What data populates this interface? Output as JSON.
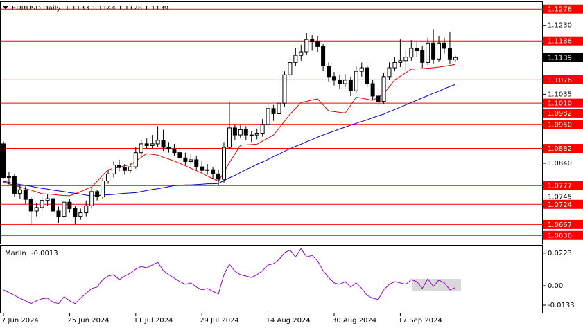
{
  "chart_data": [
    {
      "type": "candlestick",
      "title": "EURUSD,Daily  1.1133 1.1144 1.1128 1.1139",
      "categories": [
        "7 Jun 2024",
        null,
        null,
        null,
        null,
        null,
        null,
        null,
        null,
        null,
        null,
        null,
        "25 Jun 2024",
        null,
        null,
        null,
        null,
        null,
        null,
        null,
        null,
        null,
        null,
        null,
        "11 Jul 2024",
        null,
        null,
        null,
        null,
        null,
        null,
        null,
        null,
        null,
        null,
        null,
        "29 Jul 2024",
        null,
        null,
        null,
        null,
        null,
        null,
        null,
        null,
        null,
        null,
        null,
        "14 Aug 2024",
        null,
        null,
        null,
        null,
        null,
        null,
        null,
        null,
        null,
        null,
        null,
        "30 Aug 2024",
        null,
        null,
        null,
        null,
        null,
        null,
        null,
        null,
        null,
        null,
        null,
        "17 Sep 2024",
        null,
        null,
        null,
        null,
        null,
        null,
        null,
        null,
        null,
        null
      ],
      "open": [
        1.0895,
        1.08,
        1.0802,
        1.0755,
        1.0765,
        1.0738,
        1.0705,
        1.0715,
        1.0735,
        1.074,
        1.0705,
        1.069,
        1.073,
        1.0712,
        1.069,
        1.07,
        1.072,
        1.076,
        1.0745,
        1.079,
        1.081,
        1.0835,
        1.0828,
        1.082,
        1.083,
        1.087,
        1.0895,
        1.089,
        1.0895,
        1.0905,
        1.0885,
        1.088,
        1.087,
        1.0855,
        1.0845,
        1.085,
        1.083,
        1.082,
        1.0822,
        1.081,
        1.0795,
        1.0885,
        1.094,
        1.092,
        1.0935,
        1.092,
        1.092,
        1.0925,
        1.095,
        1.0995,
        1.098,
        1.101,
        1.109,
        1.1125,
        1.1145,
        1.1155,
        1.119,
        1.1185,
        1.117,
        1.1115,
        1.1085,
        1.1075,
        1.1065,
        1.1075,
        1.1045,
        1.11,
        1.111,
        1.1065,
        1.103,
        1.1015,
        1.1085,
        1.111,
        1.1125,
        1.113,
        1.114,
        1.1165,
        1.116,
        1.1125,
        1.118,
        1.1135,
        1.118,
        1.1165,
        1.1133
      ],
      "high": [
        1.0902,
        1.0815,
        1.081,
        1.078,
        1.0775,
        1.0745,
        1.0728,
        1.0745,
        1.0752,
        1.0748,
        1.0718,
        1.0745,
        1.074,
        1.072,
        1.0712,
        1.0735,
        1.077,
        1.0765,
        1.0798,
        1.0822,
        1.0845,
        1.085,
        1.0838,
        1.0842,
        1.0885,
        1.0905,
        1.091,
        1.092,
        1.0945,
        1.0935,
        1.09,
        1.0895,
        1.0885,
        1.087,
        1.0868,
        1.086,
        1.0848,
        1.0838,
        1.083,
        1.0822,
        1.09,
        1.1012,
        1.095,
        1.0948,
        1.0945,
        1.0932,
        1.0938,
        1.0965,
        1.101,
        1.1005,
        1.1025,
        1.11,
        1.114,
        1.1165,
        1.1175,
        1.1208,
        1.1202,
        1.12,
        1.1178,
        1.1125,
        1.1098,
        1.109,
        1.1092,
        1.1085,
        1.1115,
        1.1125,
        1.1118,
        1.1075,
        1.104,
        1.1095,
        1.1125,
        1.114,
        1.119,
        1.116,
        1.1188,
        1.1185,
        1.1172,
        1.1195,
        1.1219,
        1.12,
        1.1195,
        1.1212,
        1.1144
      ],
      "low": [
        1.0795,
        1.078,
        1.0745,
        1.074,
        1.0725,
        1.067,
        1.069,
        1.0705,
        1.072,
        1.0695,
        1.0672,
        1.0685,
        1.07,
        1.0668,
        1.068,
        1.069,
        1.0712,
        1.0735,
        1.074,
        1.0782,
        1.08,
        1.0818,
        1.0808,
        1.0812,
        1.0825,
        1.0862,
        1.088,
        1.0882,
        1.0885,
        1.0875,
        1.087,
        1.086,
        1.0842,
        1.0835,
        1.0838,
        1.082,
        1.0812,
        1.0808,
        1.0795,
        1.0777,
        1.0785,
        1.088,
        1.0905,
        1.0912,
        1.0905,
        1.09,
        1.0908,
        1.0915,
        1.094,
        1.096,
        1.097,
        1.1,
        1.108,
        1.1115,
        1.113,
        1.1145,
        1.116,
        1.1155,
        1.11,
        1.107,
        1.106,
        1.105,
        1.1055,
        1.103,
        1.104,
        1.1085,
        1.1055,
        1.102,
        1.1004,
        1.1008,
        1.1075,
        1.11,
        1.1112,
        1.11,
        1.113,
        1.114,
        1.111,
        1.1118,
        1.1122,
        1.1128,
        1.115,
        1.112,
        1.1128
      ],
      "close": [
        1.08,
        1.0802,
        1.0755,
        1.0765,
        1.0738,
        1.0705,
        1.0715,
        1.0735,
        1.074,
        1.0705,
        1.069,
        1.073,
        1.0712,
        1.069,
        1.07,
        1.072,
        1.076,
        1.0745,
        1.079,
        1.081,
        1.0835,
        1.0828,
        1.082,
        1.083,
        1.087,
        1.0895,
        1.089,
        1.0895,
        1.0905,
        1.0885,
        1.088,
        1.087,
        1.0855,
        1.0845,
        1.085,
        1.083,
        1.082,
        1.0822,
        1.081,
        1.0795,
        1.0885,
        1.094,
        1.092,
        1.0935,
        1.092,
        1.092,
        1.0925,
        1.095,
        1.0995,
        1.098,
        1.101,
        1.109,
        1.1125,
        1.1145,
        1.1155,
        1.119,
        1.1185,
        1.117,
        1.1115,
        1.1085,
        1.1075,
        1.1065,
        1.1075,
        1.1045,
        1.11,
        1.111,
        1.1065,
        1.103,
        1.1015,
        1.1085,
        1.111,
        1.1125,
        1.113,
        1.114,
        1.1165,
        1.116,
        1.1125,
        1.118,
        1.1135,
        1.118,
        1.1165,
        1.1135,
        1.1139
      ],
      "candle_colors": {
        "up": "#ffffff",
        "down": "#000000",
        "outline": "#000000"
      },
      "series": [
        {
          "color": "#e00000",
          "values": [
            1.0787,
            1.0782,
            1.0778,
            1.0773,
            1.0768,
            1.0764,
            1.0759,
            1.0754,
            1.0753,
            1.0752,
            1.075,
            1.0749,
            1.0748,
            1.0754,
            1.076,
            1.0767,
            1.0773,
            1.0789,
            1.0806,
            1.0822,
            1.0826,
            1.0829,
            1.0833,
            1.0836,
            1.0846,
            1.0857,
            1.0867,
            1.0865,
            1.0863,
            1.0857,
            1.0852,
            1.0846,
            1.084,
            1.0833,
            1.0826,
            1.0819,
            1.0812,
            1.0804,
            1.0797,
            1.0789,
            1.0815,
            1.0842,
            1.0866,
            1.0891,
            1.0892,
            1.0893,
            1.0894,
            1.0903,
            1.0911,
            1.092,
            1.094,
            1.0959,
            1.0979,
            1.0995,
            1.1012,
            1.1015,
            1.1019,
            1.1022,
            1.1005,
            1.0988,
            1.0986,
            1.0984,
            1.0982,
            1.1004,
            1.1027,
            1.1024,
            1.1021,
            1.1018,
            1.1027,
            1.1037,
            1.1056,
            1.1076,
            1.1086,
            1.1096,
            1.1106,
            1.1107,
            1.1108,
            1.1109,
            1.111,
            1.1112,
            1.1114,
            1.1117,
            1.1119
          ]
        },
        {
          "color": "#0000c8",
          "values": [
            1.0789,
            1.0786,
            1.0783,
            1.078,
            1.0778,
            1.0775,
            1.0772,
            1.0769,
            1.0767,
            1.0764,
            1.0762,
            1.076,
            1.0757,
            1.0755,
            1.0753,
            1.075,
            1.0748,
            1.0749,
            1.075,
            1.0751,
            1.0752,
            1.0754,
            1.0755,
            1.0756,
            1.0757,
            1.076,
            1.0763,
            1.0766,
            1.0768,
            1.0771,
            1.0774,
            1.0777,
            1.0778,
            1.0779,
            1.0779,
            1.078,
            1.0781,
            1.0782,
            1.0782,
            1.0783,
            1.0791,
            1.0799,
            1.0806,
            1.0814,
            1.0822,
            1.0829,
            1.0837,
            1.0844,
            1.0851,
            1.0859,
            1.0866,
            1.0874,
            1.0881,
            1.0888,
            1.0894,
            1.0901,
            1.0907,
            1.0914,
            1.092,
            1.0926,
            1.0931,
            1.0937,
            1.0942,
            1.0948,
            1.0953,
            1.0958,
            1.0963,
            1.0969,
            1.0974,
            1.0979,
            1.0986,
            1.0992,
            1.0999,
            1.1005,
            1.1012,
            1.1018,
            1.1025,
            1.1031,
            1.1038,
            1.1044,
            1.1051,
            1.1057,
            1.1063
          ]
        }
      ],
      "levels": [
        1.1276,
        1.1186,
        1.1076,
        {
          "value": 1.101,
          "label": "1.1010"
        },
        1.0982,
        {
          "value": 1.095,
          "label": "1.0950"
        },
        1.0882,
        1.0777,
        1.0724,
        1.0667,
        1.0636
      ],
      "level_color": "#ff0000",
      "ylim": [
        1.0613,
        1.1296
      ],
      "yticks": [
        {
          "value": 1.123,
          "label": "1.1230"
        },
        1.1035,
        {
          "value": 1.084,
          "label": "1.0840"
        },
        1.0745
      ]
    },
    {
      "type": "line",
      "series": [
        {
          "name": "Marlin",
          "color": "#9400c8",
          "values": [
            -0.0028,
            -0.0047,
            -0.0066,
            -0.0085,
            -0.0103,
            -0.0122,
            -0.0103,
            -0.0089,
            -0.0085,
            -0.0113,
            -0.0122,
            -0.0075,
            -0.0103,
            -0.0122,
            -0.0085,
            -0.0052,
            -0.0019,
            -0.0009,
            0.0042,
            0.0066,
            0.0075,
            0.0042,
            0.0066,
            0.0085,
            0.0113,
            0.0132,
            0.0122,
            0.0141,
            0.016,
            0.0103,
            0.0075,
            0.0052,
            0.0028,
            0.0009,
            0.0019,
            -0.0009,
            -0.0028,
            -0.0019,
            -0.0038,
            -0.0056,
            0.0075,
            0.0146,
            0.0099,
            0.0075,
            0.0066,
            0.0056,
            0.0075,
            0.0103,
            0.0141,
            0.015,
            0.0179,
            0.0226,
            0.0244,
            0.0197,
            0.0254,
            0.0197,
            0.0207,
            0.0169,
            0.0103,
            0.0056,
            0.0019,
            0.0009,
            0.0028,
            -0.0009,
            0.0019,
            -0.0019,
            -0.0066,
            -0.0085,
            -0.0094,
            -0.0028,
            0.0009,
            0.0028,
            0.0019,
            0.0009,
            0.0042,
            0.0028,
            -0.0019,
            0.0047,
            -0.0005,
            0.0038,
            0.0019,
            -0.0028,
            -0.0013
          ]
        }
      ],
      "ylim": [
        -0.0185,
        0.0279
      ],
      "yticks": [
        0.0223,
        {
          "value": 0,
          "label": "0.00"
        },
        -0.0133
      ]
    }
  ]
}
